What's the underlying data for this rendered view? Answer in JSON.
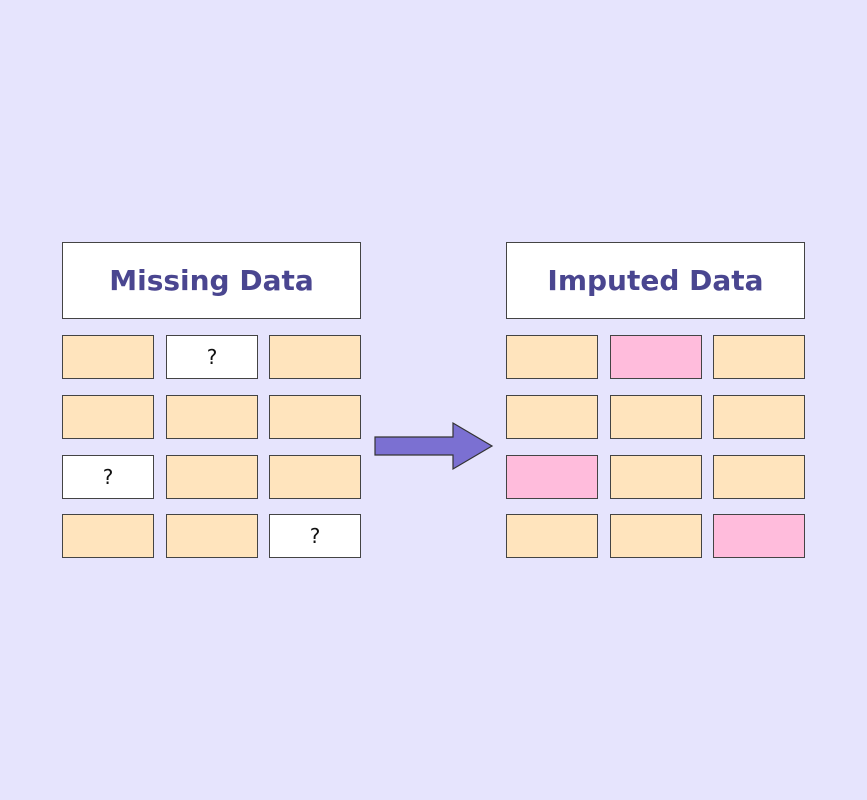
{
  "left": {
    "title": "Missing Data",
    "rows": [
      [
        "",
        "?",
        ""
      ],
      [
        "",
        "",
        ""
      ],
      [
        "?",
        "",
        ""
      ],
      [
        "",
        "",
        "?"
      ]
    ],
    "types": [
      [
        "value",
        "missing",
        "value"
      ],
      [
        "value",
        "value",
        "value"
      ],
      [
        "missing",
        "value",
        "value"
      ],
      [
        "value",
        "value",
        "missing"
      ]
    ]
  },
  "right": {
    "title": "Imputed Data",
    "rows": [
      [
        "",
        "",
        ""
      ],
      [
        "",
        "",
        ""
      ],
      [
        "",
        "",
        ""
      ],
      [
        "",
        "",
        ""
      ]
    ],
    "types": [
      [
        "value",
        "imputed",
        "value"
      ],
      [
        "value",
        "value",
        "value"
      ],
      [
        "imputed",
        "value",
        "value"
      ],
      [
        "value",
        "value",
        "imputed"
      ]
    ]
  },
  "arrow": {
    "icon": "right-arrow-icon",
    "color": "#7b70d2"
  },
  "colors": {
    "background": "#e6e4fd",
    "value": "#ffe4bd",
    "missing": "#ffffff",
    "imputed": "#ffbcdc",
    "title": "#4a4690"
  }
}
